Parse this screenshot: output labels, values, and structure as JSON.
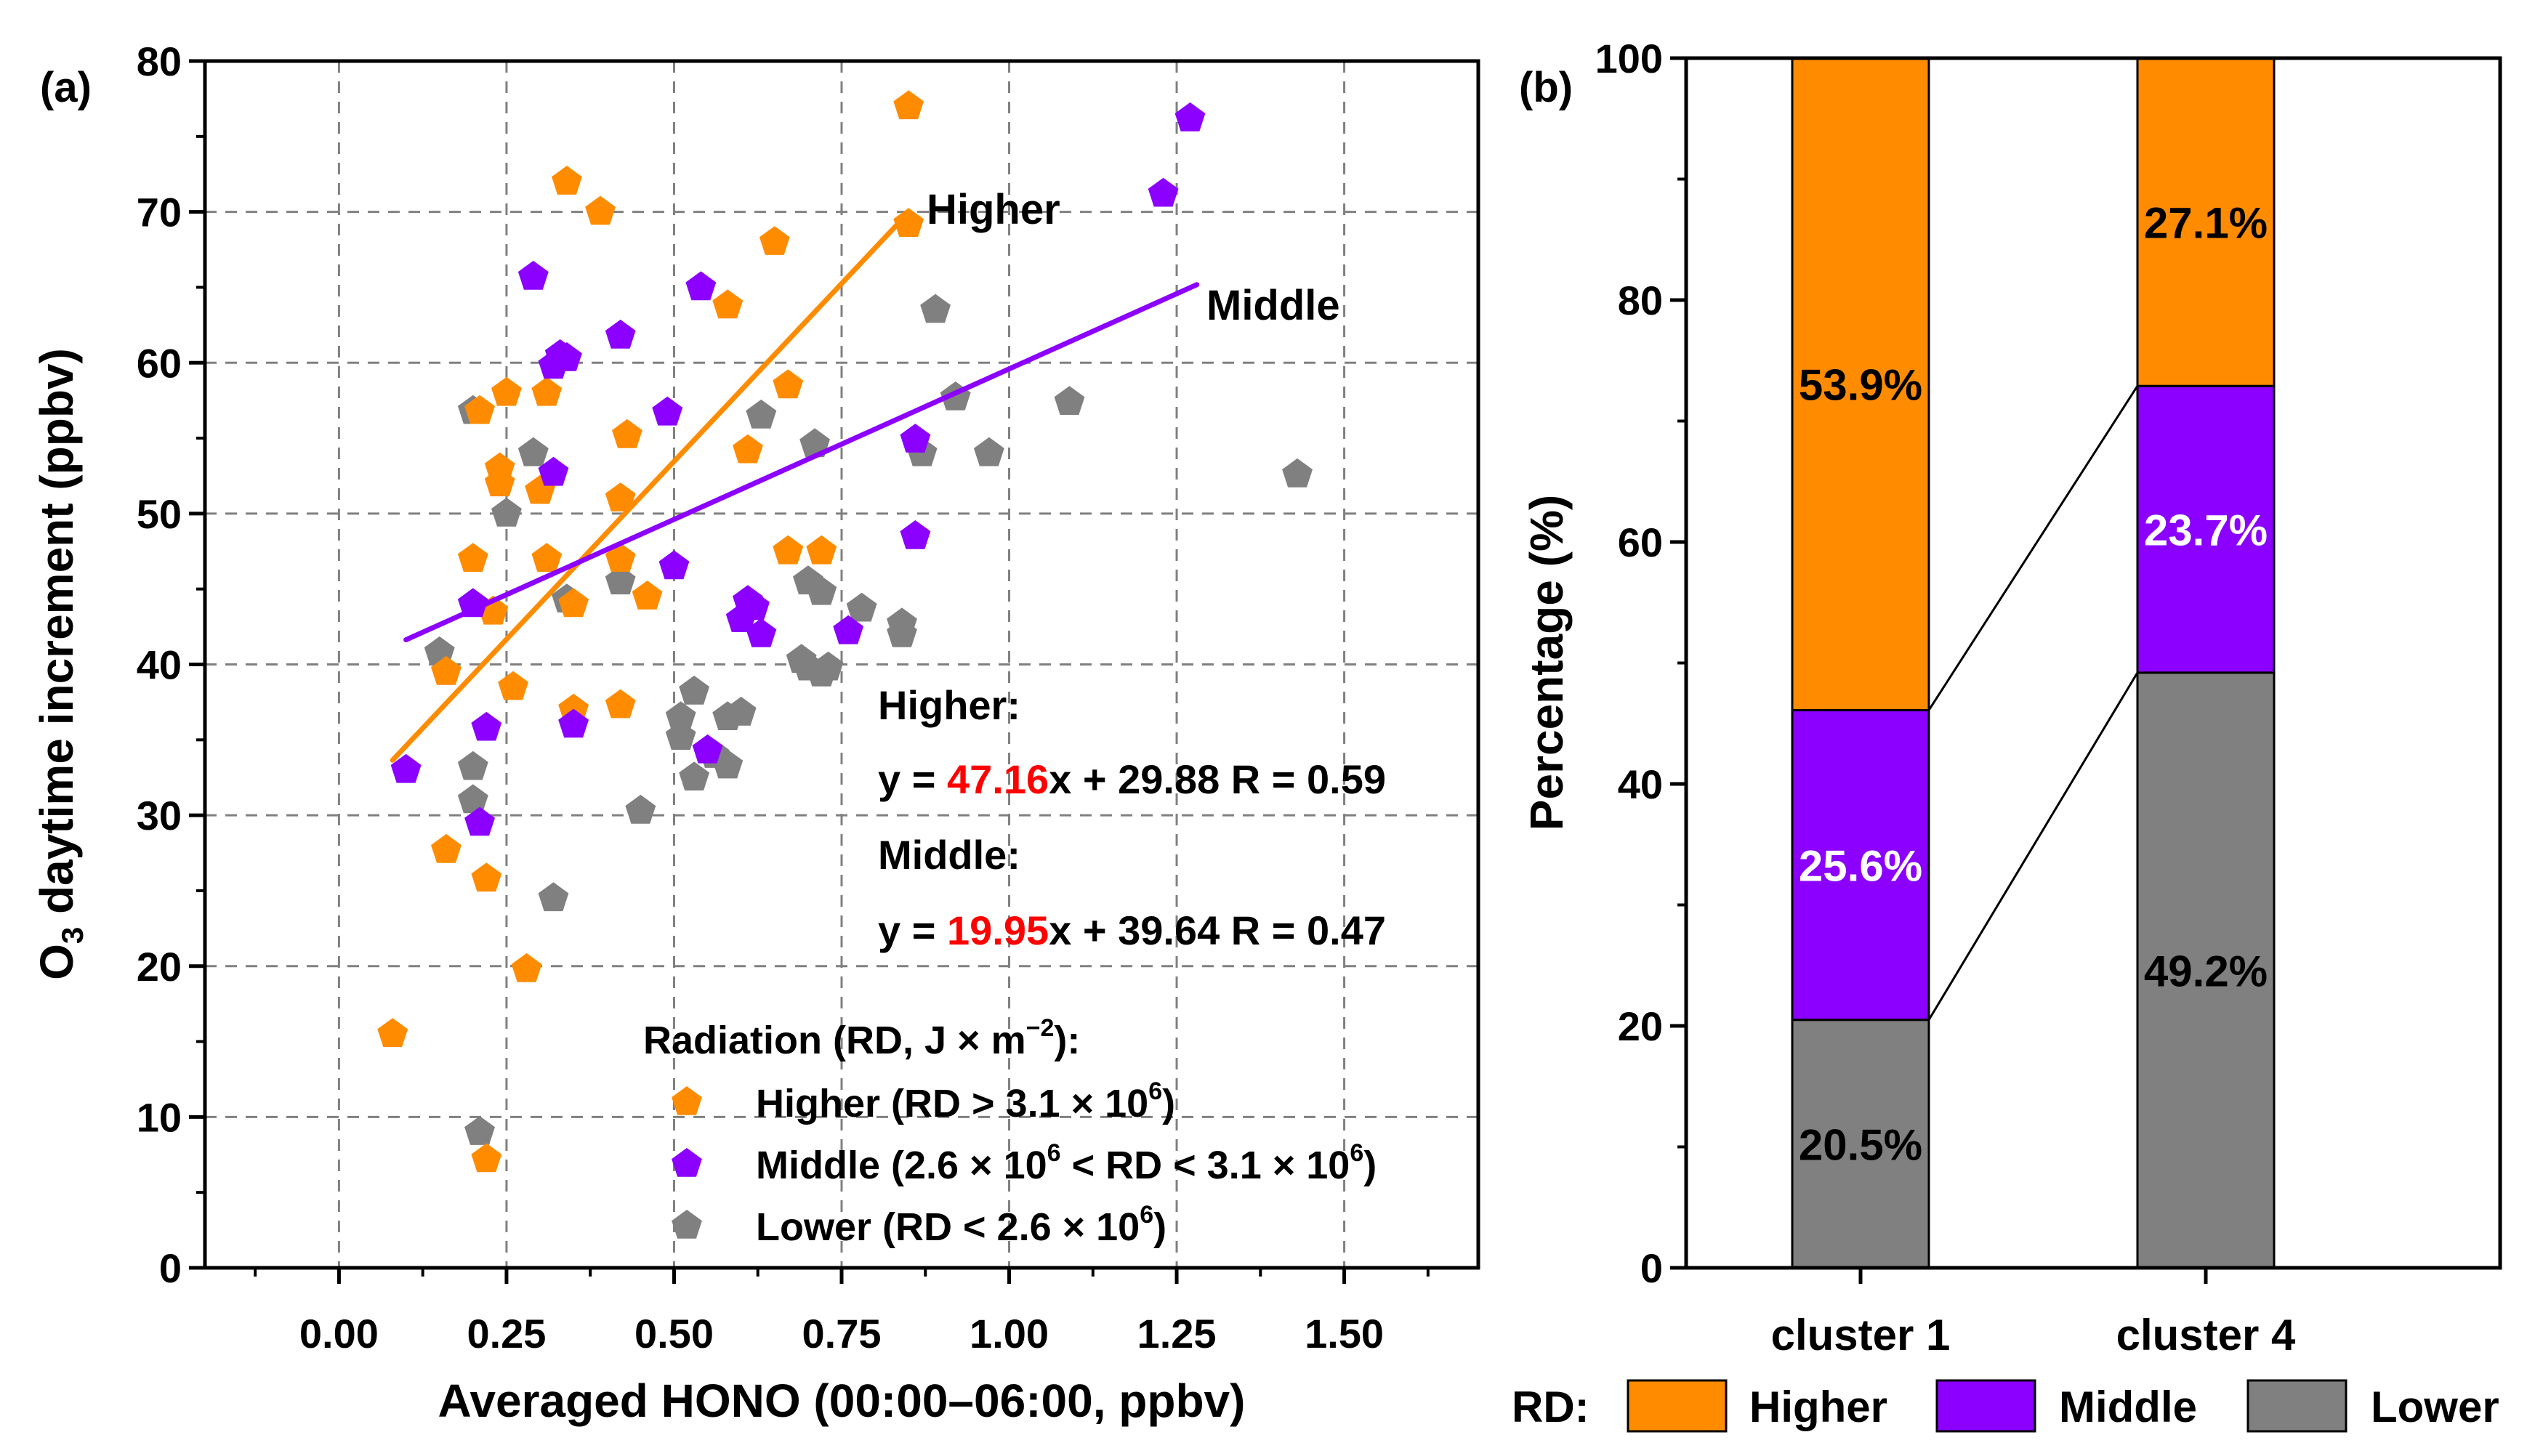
{
  "colors": {
    "higher": "#FF8C00",
    "middle": "#8B00FF",
    "lower": "#808080",
    "coef": "#FF0000",
    "grid": "#808080"
  },
  "chart_data": [
    {
      "panel_label": "(a)",
      "type": "scatter",
      "xlabel": "Averaged HONO (00:00–06:00, ppbv)",
      "ylabel_main": "O",
      "ylabel_sub": "3",
      "ylabel_rest": " daytime increment (ppbv)",
      "xlim": [
        -0.2,
        1.7
      ],
      "ylim": [
        0,
        80
      ],
      "xticks": [
        0.0,
        0.25,
        0.5,
        0.75,
        1.0,
        1.25,
        1.5
      ],
      "xtick_labels": [
        "0.00",
        "0.25",
        "0.50",
        "0.75",
        "1.00",
        "1.25",
        "1.50"
      ],
      "yticks": [
        0,
        10,
        20,
        30,
        40,
        50,
        60,
        70,
        80
      ],
      "ytick_labels": [
        "0",
        "10",
        "20",
        "30",
        "40",
        "50",
        "60",
        "70",
        "80"
      ],
      "grid": true,
      "series": [
        {
          "name": "Higher",
          "color_key": "higher",
          "points": [
            [
              0.08,
              15.5
            ],
            [
              0.16,
              27.7
            ],
            [
              0.16,
              39.5
            ],
            [
              0.2,
              47
            ],
            [
              0.21,
              56.8
            ],
            [
              0.22,
              7.2
            ],
            [
              0.22,
              25.8
            ],
            [
              0.23,
              43.5
            ],
            [
              0.24,
              53
            ],
            [
              0.24,
              52
            ],
            [
              0.25,
              58
            ],
            [
              0.26,
              38.5
            ],
            [
              0.28,
              19.8
            ],
            [
              0.3,
              51.5
            ],
            [
              0.31,
              58
            ],
            [
              0.31,
              47
            ],
            [
              0.34,
              72
            ],
            [
              0.35,
              37
            ],
            [
              0.35,
              44
            ],
            [
              0.39,
              70
            ],
            [
              0.42,
              37.3
            ],
            [
              0.42,
              47
            ],
            [
              0.42,
              51
            ],
            [
              0.43,
              55.2
            ],
            [
              0.46,
              44.5
            ],
            [
              0.58,
              63.8
            ],
            [
              0.61,
              54.2
            ],
            [
              0.65,
              68
            ],
            [
              0.67,
              58.5
            ],
            [
              0.67,
              47.5
            ],
            [
              0.72,
              47.5
            ],
            [
              0.85,
              77
            ],
            [
              0.85,
              69.2
            ]
          ]
        },
        {
          "name": "Middle",
          "color_key": "middle",
          "points": [
            [
              0.1,
              33
            ],
            [
              0.2,
              44
            ],
            [
              0.21,
              29.5
            ],
            [
              0.22,
              35.8
            ],
            [
              0.29,
              65.7
            ],
            [
              0.32,
              52.7
            ],
            [
              0.32,
              59.8
            ],
            [
              0.33,
              60.5
            ],
            [
              0.34,
              60.3
            ],
            [
              0.35,
              36
            ],
            [
              0.42,
              61.8
            ],
            [
              0.49,
              56.7
            ],
            [
              0.5,
              46.5
            ],
            [
              0.54,
              65
            ],
            [
              0.55,
              34.3
            ],
            [
              0.6,
              43
            ],
            [
              0.61,
              44.2
            ],
            [
              0.62,
              43.8
            ],
            [
              0.63,
              42
            ],
            [
              0.76,
              42.2
            ],
            [
              0.86,
              48.5
            ],
            [
              0.86,
              54.9
            ],
            [
              1.23,
              71.2
            ],
            [
              1.27,
              76.2
            ]
          ]
        },
        {
          "name": "Lower",
          "color_key": "lower",
          "points": [
            [
              0.15,
              40.8
            ],
            [
              0.2,
              56.8
            ],
            [
              0.2,
              33.2
            ],
            [
              0.2,
              31
            ],
            [
              0.21,
              9
            ],
            [
              0.25,
              50
            ],
            [
              0.29,
              54
            ],
            [
              0.32,
              24.5
            ],
            [
              0.34,
              44.3
            ],
            [
              0.42,
              45.5
            ],
            [
              0.45,
              30.3
            ],
            [
              0.51,
              35.2
            ],
            [
              0.51,
              36.5
            ],
            [
              0.53,
              38.2
            ],
            [
              0.53,
              32.5
            ],
            [
              0.56,
              34
            ],
            [
              0.58,
              36.5
            ],
            [
              0.58,
              33.3
            ],
            [
              0.6,
              36.8
            ],
            [
              0.63,
              56.5
            ],
            [
              0.69,
              40.3
            ],
            [
              0.7,
              39.8
            ],
            [
              0.7,
              45.5
            ],
            [
              0.71,
              54.6
            ],
            [
              0.72,
              44.8
            ],
            [
              0.72,
              39.4
            ],
            [
              0.73,
              39.8
            ],
            [
              0.78,
              43.7
            ],
            [
              0.84,
              42.7
            ],
            [
              0.84,
              42
            ],
            [
              0.87,
              54
            ],
            [
              0.89,
              63.5
            ],
            [
              0.92,
              57.7
            ],
            [
              0.97,
              54
            ],
            [
              1.09,
              57.4
            ],
            [
              1.43,
              52.6
            ]
          ]
        }
      ],
      "fit_lines": [
        {
          "name": "Higher",
          "color_key": "higher",
          "x_range": [
            0.08,
            0.85
          ],
          "slope": 47.16,
          "intercept": 29.88,
          "label": "Higher"
        },
        {
          "name": "Middle",
          "color_key": "middle",
          "x_range": [
            0.1,
            1.28
          ],
          "slope": 19.95,
          "intercept": 39.64,
          "label": "Middle"
        }
      ],
      "equations": [
        {
          "title": "Higher:",
          "prefix": "y = ",
          "slope": "47.16",
          "suffix": "x + 29.88  R = 0.59"
        },
        {
          "title": "Middle:",
          "prefix": "y = ",
          "slope": "19.95",
          "suffix": "x + 39.64  R = 0.47"
        }
      ],
      "legend": {
        "title": "Radiation (RD, J × m",
        "title_sup": "−2",
        "title_end": "):",
        "entries": [
          {
            "color_key": "higher",
            "text": "Higher (RD > 3.1 × 10",
            "sup": "6",
            "end": ")"
          },
          {
            "color_key": "middle",
            "text": "Middle (2.6 × 10",
            "sup": "6",
            "mid": " < RD < 3.1 × 10",
            "sup2": "6",
            "end": ")"
          },
          {
            "color_key": "lower",
            "text": "Lower (RD < 2.6 × 10",
            "sup": "6",
            "end": ")"
          }
        ]
      }
    },
    {
      "panel_label": "(b)",
      "type": "bar",
      "stacked": true,
      "ylabel": "Percentage (%)",
      "ylim": [
        0,
        100
      ],
      "yticks": [
        0,
        20,
        40,
        60,
        80,
        100
      ],
      "ytick_labels": [
        "0",
        "20",
        "40",
        "60",
        "80",
        "100"
      ],
      "categories": [
        "cluster 1",
        "cluster 4"
      ],
      "series": [
        {
          "name": "Lower",
          "color_key": "lower",
          "values": [
            20.5,
            49.2
          ],
          "labels": [
            "20.5%",
            "49.2%"
          ],
          "label_color": "#000000"
        },
        {
          "name": "Middle",
          "color_key": "middle",
          "values": [
            25.6,
            23.7
          ],
          "labels": [
            "25.6%",
            "23.7%"
          ],
          "label_color": "#ffffff"
        },
        {
          "name": "Higher",
          "color_key": "higher",
          "values": [
            53.9,
            27.1
          ],
          "labels": [
            "53.9%",
            "27.1%"
          ],
          "label_color": "#000000"
        }
      ],
      "legend_title": "RD:",
      "legend_entries": [
        "Higher",
        "Middle",
        "Lower"
      ]
    }
  ]
}
